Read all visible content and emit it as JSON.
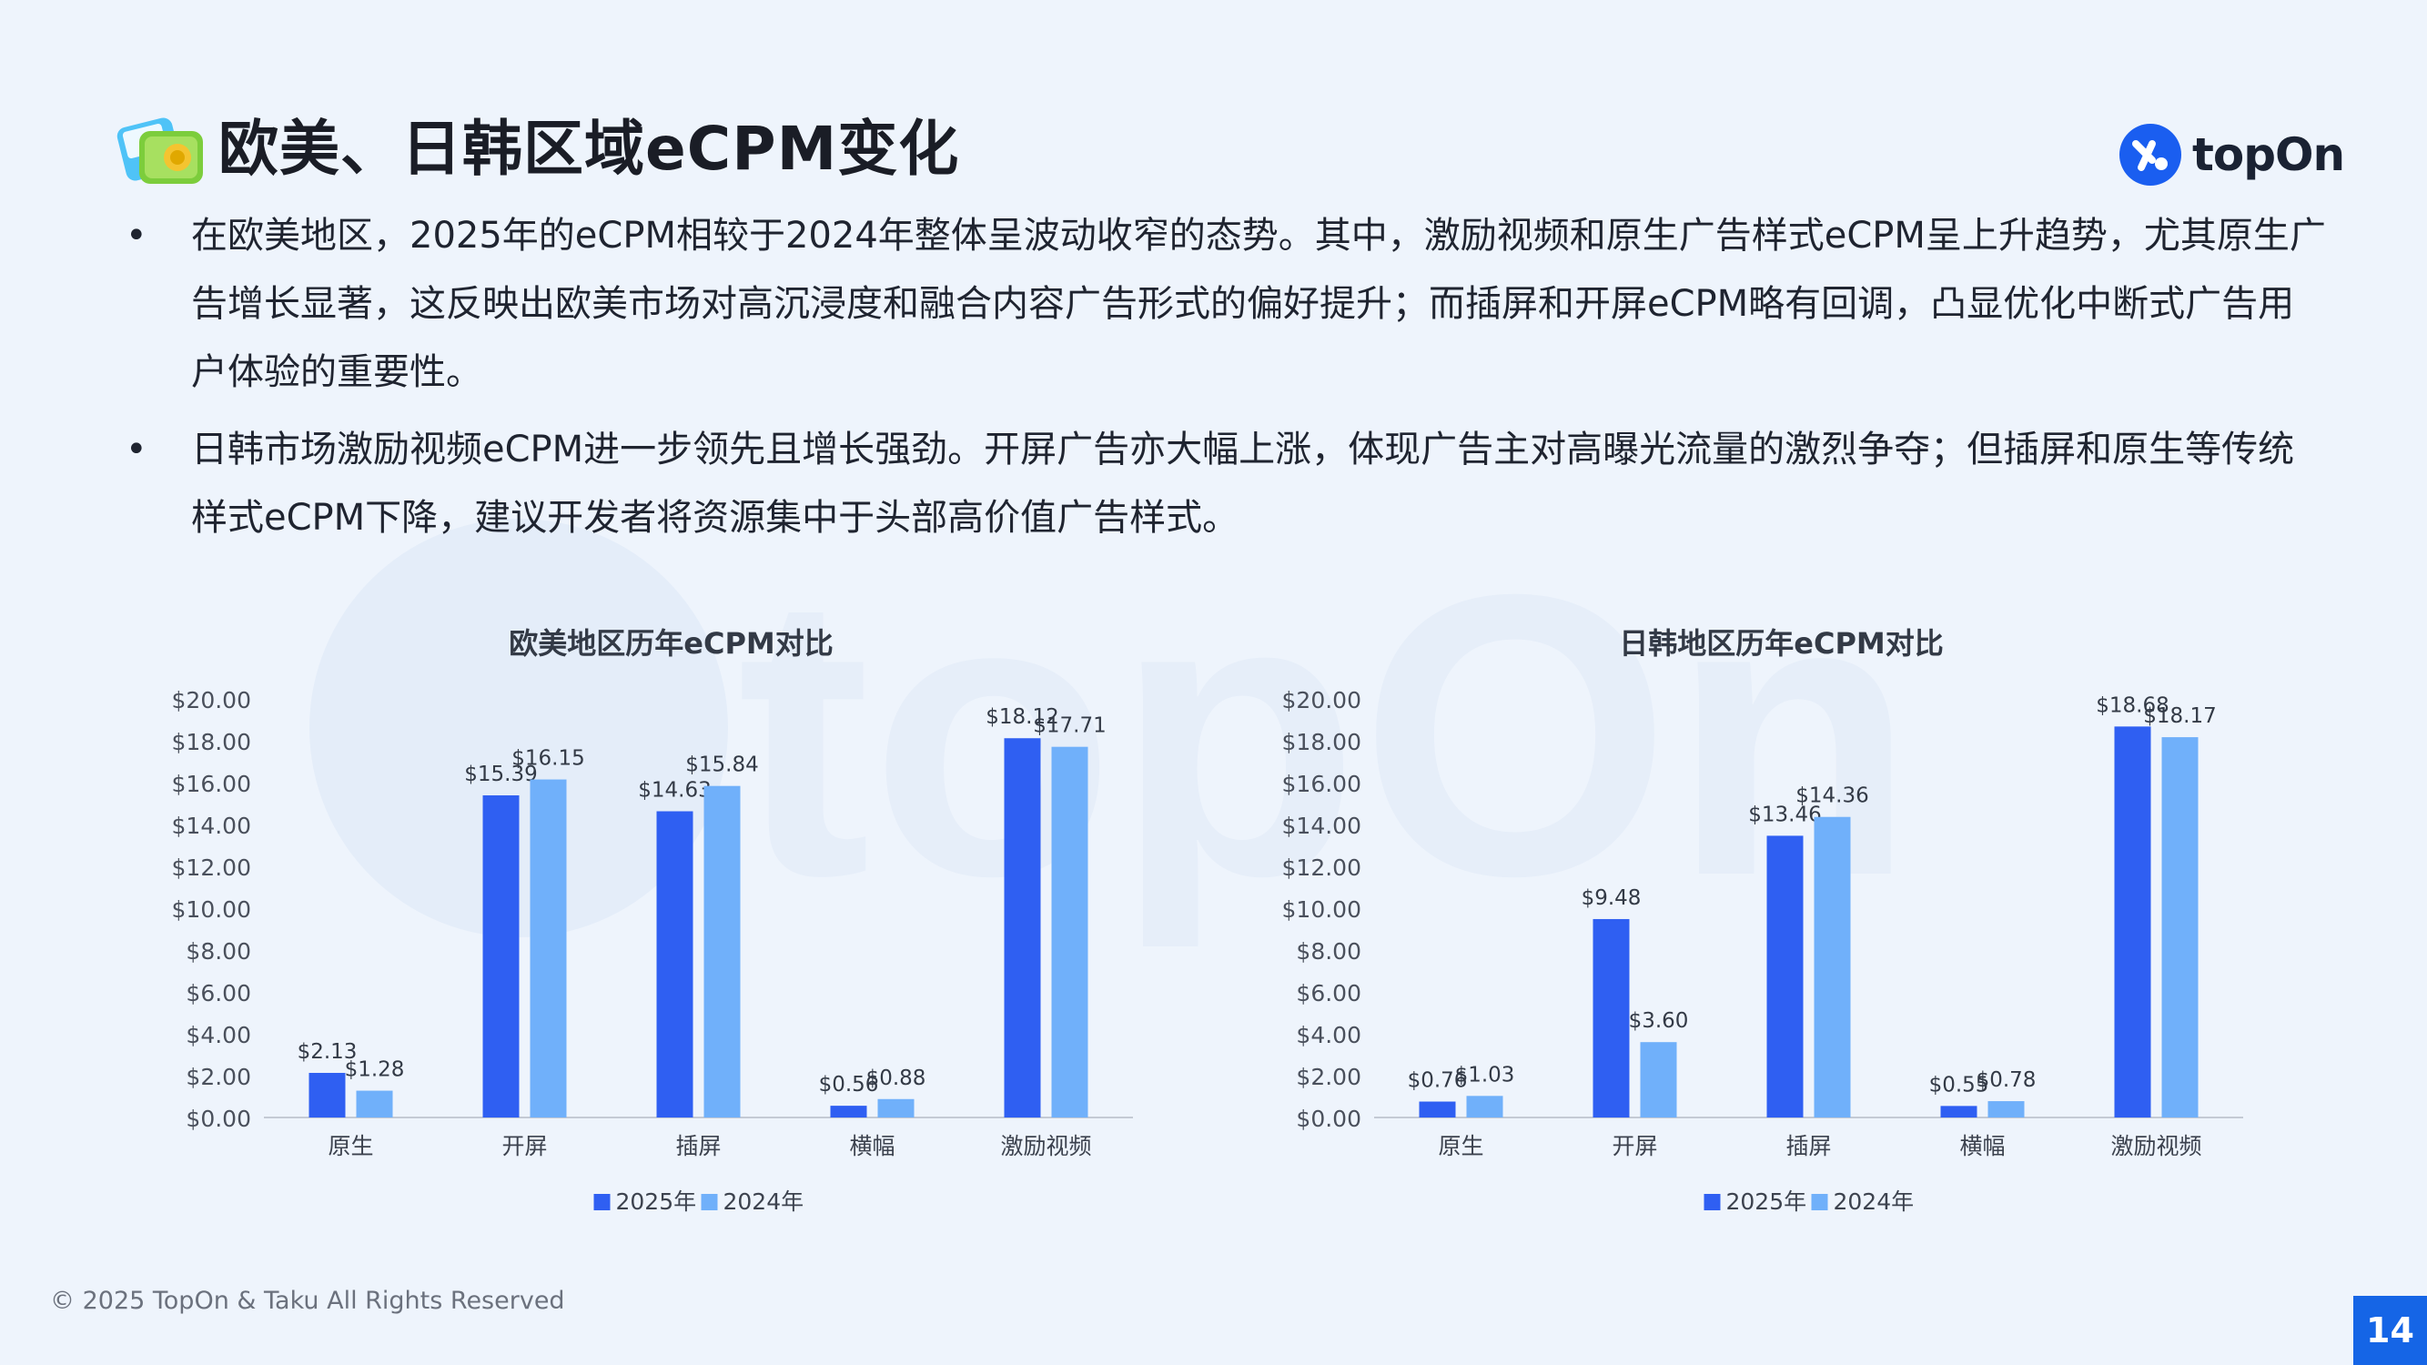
{
  "page": {
    "title": "欧美、日韩区域eCPM变化",
    "logo_text": "topOn",
    "watermark_text": "topOn",
    "bullets": [
      "在欧美地区，2025年的eCPM相较于2024年整体呈波动收窄的态势。其中，激励视频和原生广告样式eCPM呈上升趋势，尤其原生广告增长显著，这反映出欧美市场对高沉浸度和融合内容广告形式的偏好提升；而插屏和开屏eCPM略有回调，凸显优化中断式广告用户体验的重要性。",
      "日韩市场激励视频eCPM进一步领先且增长强劲。开屏广告亦大幅上涨，体现广告主对高曝光流量的激烈争夺；但插屏和原生等传统样式eCPM下降，建议开发者将资源集中于头部高价值广告样式。"
    ],
    "copyright": "© 2025 TopOn & Taku All Rights Reserved",
    "page_number": "14"
  },
  "colors": {
    "series_2025": "#2f5ff2",
    "series_2024": "#70b0fa",
    "accent": "#1565e6",
    "background": "#eef4fc"
  },
  "chart_data": [
    {
      "type": "bar",
      "title": "欧美地区历年eCPM对比",
      "categories": [
        "原生",
        "开屏",
        "插屏",
        "横幅",
        "激励视频"
      ],
      "series": [
        {
          "name": "2025年",
          "values": [
            2.13,
            15.39,
            14.63,
            0.56,
            18.12
          ],
          "labels": [
            "$2.13",
            "$15.39",
            "$14.63",
            "$0.56",
            "$18.12"
          ]
        },
        {
          "name": "2024年",
          "values": [
            1.28,
            16.15,
            15.84,
            0.88,
            17.71
          ],
          "labels": [
            "$1.28",
            "$16.15",
            "$15.84",
            "$0.88",
            "$17.71"
          ]
        }
      ],
      "yticks": [
        "$0.00",
        "$2.00",
        "$4.00",
        "$6.00",
        "$8.00",
        "$10.00",
        "$12.00",
        "$14.00",
        "$16.00",
        "$18.00",
        "$20.00"
      ],
      "ylim": [
        0,
        20
      ],
      "legend": "bottom",
      "grid": false
    },
    {
      "type": "bar",
      "title": "日韩地区历年eCPM对比",
      "categories": [
        "原生",
        "开屏",
        "插屏",
        "横幅",
        "激励视频"
      ],
      "series": [
        {
          "name": "2025年",
          "values": [
            0.76,
            9.48,
            13.46,
            0.55,
            18.68
          ],
          "labels": [
            "$0.76",
            "$9.48",
            "$13.46",
            "$0.55",
            "$18.68"
          ]
        },
        {
          "name": "2024年",
          "values": [
            1.03,
            3.6,
            14.36,
            0.78,
            18.17
          ],
          "labels": [
            "$1.03",
            "$3.60",
            "$14.36",
            "$0.78",
            "$18.17"
          ]
        }
      ],
      "yticks": [
        "$0.00",
        "$2.00",
        "$4.00",
        "$6.00",
        "$8.00",
        "$10.00",
        "$12.00",
        "$14.00",
        "$16.00",
        "$18.00",
        "$20.00"
      ],
      "ylim": [
        0,
        20
      ],
      "legend": "bottom",
      "grid": false
    }
  ]
}
